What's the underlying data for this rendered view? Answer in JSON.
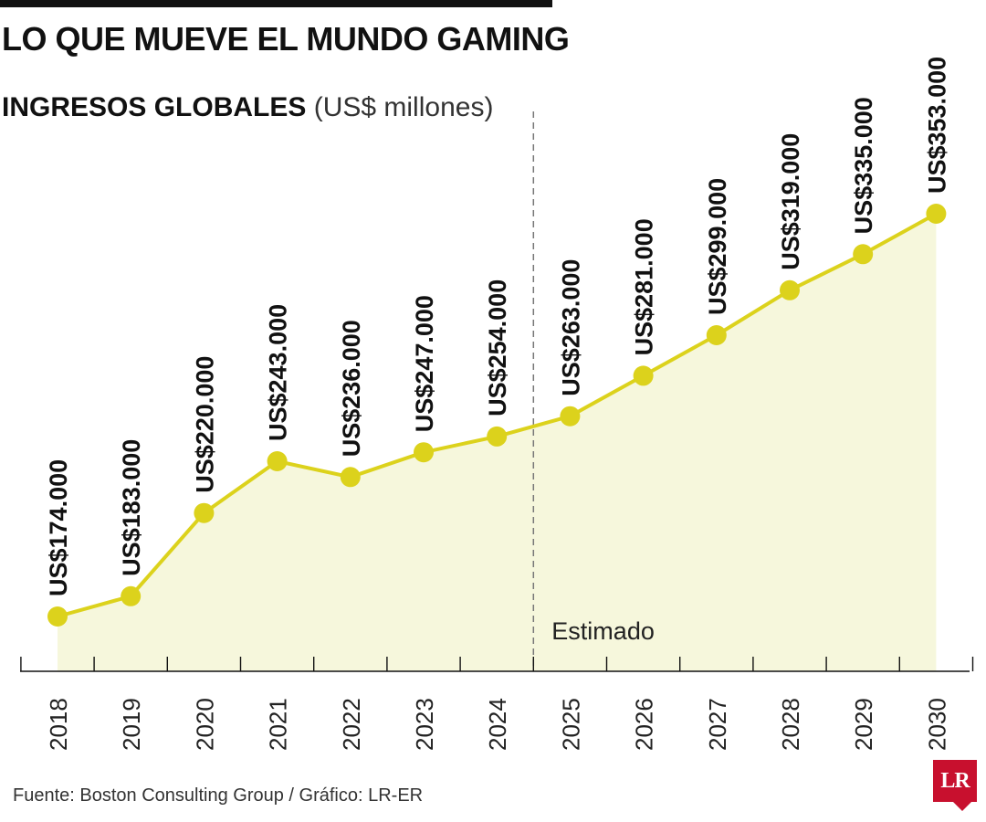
{
  "header": {
    "title": "LO QUE MUEVE EL MUNDO GAMING",
    "subtitle_strong": "INGRESOS GLOBALES",
    "subtitle_unit": "(US$ millones)"
  },
  "chart_data": {
    "type": "area",
    "title": "LO QUE MUEVE EL MUNDO GAMING",
    "subtitle": "INGRESOS GLOBALES (US$ millones)",
    "x": [
      "2018",
      "2019",
      "2020",
      "2021",
      "2022",
      "2023",
      "2024",
      "2025",
      "2026",
      "2027",
      "2028",
      "2029",
      "2030"
    ],
    "values": [
      174000,
      183000,
      220000,
      243000,
      236000,
      247000,
      254000,
      263000,
      281000,
      299000,
      319000,
      335000,
      353000
    ],
    "data_labels": [
      "US$174.000",
      "US$183.000",
      "US$220.000",
      "US$243.000",
      "US$236.000",
      "US$247.000",
      "US$254.000",
      "US$263.000",
      "US$281.000",
      "US$299.000",
      "US$319.000",
      "US$335.000",
      "US$353.000"
    ],
    "annotation": "Estimado",
    "estimate_from": "2025",
    "xlabel": "",
    "ylabel": "",
    "grid": false,
    "line_color": "#dcd21c",
    "fill_color": "#f6f7dc"
  },
  "footer": {
    "source": "Fuente: Boston Consulting Group / Gráfico: LR-ER",
    "logo_text": "LR"
  }
}
